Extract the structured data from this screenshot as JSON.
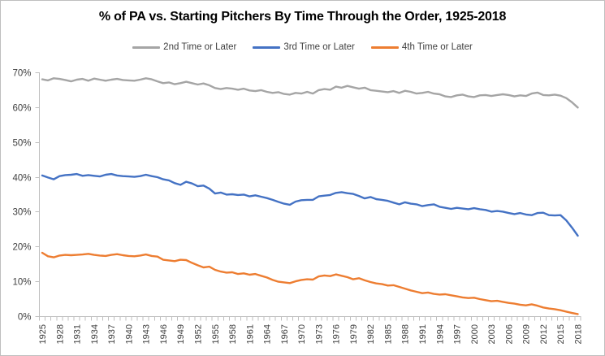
{
  "chart_data": {
    "type": "line",
    "title": "% of PA vs. Starting Pitchers By Time Through the Order, 1925-2018",
    "x_range": [
      1925,
      2018
    ],
    "x_tick_labels": [
      "1925",
      "1928",
      "1931",
      "1934",
      "1937",
      "1940",
      "1943",
      "1946",
      "1949",
      "1952",
      "1955",
      "1958",
      "1961",
      "1964",
      "1967",
      "1970",
      "1973",
      "1976",
      "1979",
      "1982",
      "1985",
      "1988",
      "1991",
      "1994",
      "1997",
      "2000",
      "2003",
      "2006",
      "2009",
      "2012",
      "2015",
      "2018"
    ],
    "ylim": [
      0,
      70
    ],
    "y_tick_step": 10,
    "y_tick_labels": [
      "0%",
      "10%",
      "20%",
      "30%",
      "40%",
      "50%",
      "60%",
      "70%"
    ],
    "grid": false,
    "legend_position": "top",
    "axis_color": "#bfbfbf",
    "tick_label_color": "#404040",
    "series": [
      {
        "name": "2nd Time or Later",
        "color": "#a5a5a5",
        "values": [
          68.0,
          67.7,
          68.3,
          68.1,
          67.8,
          67.4,
          67.9,
          68.1,
          67.6,
          68.2,
          67.9,
          67.6,
          67.9,
          68.1,
          67.8,
          67.7,
          67.6,
          67.9,
          68.3,
          68.0,
          67.4,
          66.9,
          67.1,
          66.6,
          66.9,
          67.3,
          66.9,
          66.5,
          66.8,
          66.3,
          65.5,
          65.2,
          65.5,
          65.3,
          65.0,
          65.3,
          64.8,
          64.6,
          64.9,
          64.4,
          64.1,
          64.3,
          63.8,
          63.6,
          64.1,
          63.9,
          64.4,
          63.9,
          64.9,
          65.2,
          65.0,
          65.9,
          65.6,
          66.1,
          65.7,
          65.3,
          65.6,
          64.9,
          64.7,
          64.5,
          64.3,
          64.6,
          64.1,
          64.7,
          64.4,
          63.9,
          64.1,
          64.4,
          63.9,
          63.7,
          63.1,
          62.9,
          63.4,
          63.6,
          63.1,
          62.9,
          63.4,
          63.5,
          63.2,
          63.5,
          63.7,
          63.5,
          63.1,
          63.4,
          63.2,
          63.9,
          64.2,
          63.5,
          63.4,
          63.6,
          63.3,
          62.6,
          61.4,
          59.9
        ]
      },
      {
        "name": "3rd Time or Later",
        "color": "#4472c4",
        "values": [
          40.4,
          39.8,
          39.3,
          40.2,
          40.5,
          40.6,
          40.8,
          40.3,
          40.5,
          40.3,
          40.1,
          40.6,
          40.8,
          40.4,
          40.2,
          40.1,
          40.0,
          40.2,
          40.6,
          40.2,
          39.9,
          39.3,
          39.0,
          38.2,
          37.7,
          38.6,
          38.1,
          37.3,
          37.5,
          36.6,
          35.2,
          35.5,
          34.9,
          35.0,
          34.8,
          34.9,
          34.4,
          34.7,
          34.3,
          33.9,
          33.4,
          32.8,
          32.3,
          32.0,
          32.9,
          33.3,
          33.4,
          33.4,
          34.4,
          34.6,
          34.8,
          35.4,
          35.6,
          35.3,
          35.1,
          34.5,
          33.8,
          34.2,
          33.6,
          33.4,
          33.1,
          32.6,
          32.1,
          32.7,
          32.3,
          32.1,
          31.6,
          31.9,
          32.1,
          31.4,
          31.1,
          30.8,
          31.1,
          30.9,
          30.7,
          31.0,
          30.7,
          30.5,
          30.0,
          30.2,
          30.0,
          29.6,
          29.3,
          29.6,
          29.2,
          29.0,
          29.6,
          29.7,
          29.0,
          28.9,
          29.0,
          27.5,
          25.4,
          23.1
        ]
      },
      {
        "name": "4th Time or Later",
        "color": "#ed7d31",
        "values": [
          18.2,
          17.2,
          16.9,
          17.4,
          17.6,
          17.5,
          17.6,
          17.7,
          17.9,
          17.6,
          17.4,
          17.3,
          17.6,
          17.8,
          17.5,
          17.3,
          17.2,
          17.4,
          17.7,
          17.3,
          17.1,
          16.2,
          16.0,
          15.8,
          16.2,
          16.1,
          15.3,
          14.6,
          14.0,
          14.2,
          13.3,
          12.8,
          12.5,
          12.6,
          12.1,
          12.3,
          11.9,
          12.1,
          11.6,
          11.1,
          10.4,
          9.9,
          9.7,
          9.5,
          10.0,
          10.4,
          10.6,
          10.5,
          11.4,
          11.7,
          11.5,
          12.0,
          11.6,
          11.2,
          10.6,
          10.9,
          10.3,
          9.8,
          9.4,
          9.2,
          8.8,
          8.9,
          8.4,
          7.9,
          7.4,
          7.0,
          6.6,
          6.8,
          6.4,
          6.2,
          6.3,
          6.0,
          5.7,
          5.4,
          5.2,
          5.3,
          4.9,
          4.6,
          4.3,
          4.4,
          4.1,
          3.8,
          3.6,
          3.3,
          3.1,
          3.4,
          3.0,
          2.5,
          2.2,
          2.0,
          1.7,
          1.3,
          0.9,
          0.6
        ]
      }
    ]
  }
}
